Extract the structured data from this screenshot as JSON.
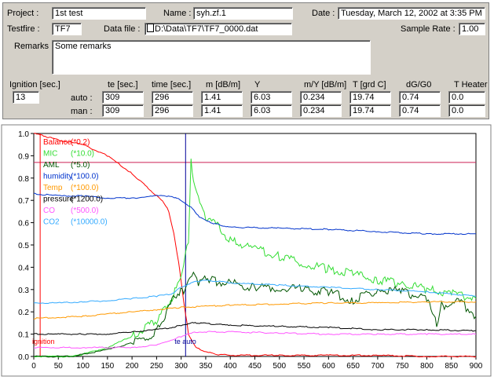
{
  "header": {
    "project_label": "Project :",
    "project_value": "1st test",
    "name_label": "Name :",
    "name_value": "syh.zf.1",
    "date_label": "Date :",
    "date_value": "Tuesday, March 12, 2002 at 3:35 PM",
    "testfire_label": "Testfire :",
    "testfire_value": "TF7",
    "datafile_label": "Data file :",
    "datafile_value": "D:\\Data\\TF7\\TF7_0000.dat",
    "samplerate_label": "Sample Rate :",
    "samplerate_value": "1.00",
    "remarks_label": "Remarks :",
    "remarks_value": "Some remarks"
  },
  "results": {
    "ignition_label": "Ignition [sec.]",
    "ignition_value": "13",
    "columns": [
      "te [sec.]",
      "time [sec.]",
      "m [dB/m]",
      "Y",
      "m/Y [dB/m]",
      "T [grd C]",
      "dG/G0",
      "T Heater"
    ],
    "rows": [
      {
        "label": "auto :",
        "values": [
          "309",
          "296",
          "1.41",
          "6.03",
          "0.234",
          "19.74",
          "0.74",
          "0.0"
        ]
      },
      {
        "label": "man :",
        "values": [
          "309",
          "296",
          "1.41",
          "6.03",
          "0.234",
          "19.74",
          "0.74",
          "0.0"
        ]
      }
    ]
  },
  "chart_data": {
    "type": "line",
    "xlim": [
      0,
      900
    ],
    "ylim": [
      0,
      1.0
    ],
    "x_ticks": [
      "0",
      "50",
      "100",
      "150",
      "200",
      "250",
      "300",
      "350",
      "400",
      "450",
      "500",
      "550",
      "600",
      "650",
      "700",
      "750",
      "800",
      "850",
      "900"
    ],
    "y_ticks": [
      "0.0",
      "0.1",
      "0.2",
      "0.3",
      "0.4",
      "0.5",
      "0.6",
      "0.7",
      "0.8",
      "0.9",
      "1.0"
    ],
    "grid": false,
    "legend_position": "top-left",
    "annotations": {
      "ignition": "ignition",
      "te_auto": "te auto"
    },
    "markers": {
      "ignition_x": 13,
      "te_x": 309,
      "horizontal_y": 0.87
    },
    "series": [
      {
        "name": "Balance",
        "scale": "(*0.2)",
        "color": "#ff0000",
        "x": [
          0,
          20,
          50,
          100,
          150,
          200,
          230,
          250,
          265,
          275,
          285,
          295,
          305,
          315,
          330,
          350,
          370,
          400,
          500,
          600,
          700,
          800,
          900
        ],
        "y": [
          1.0,
          0.99,
          0.97,
          0.95,
          0.9,
          0.82,
          0.76,
          0.72,
          0.69,
          0.65,
          0.55,
          0.42,
          0.25,
          0.1,
          0.04,
          0.02,
          0.01,
          0.005,
          0.005,
          0.005,
          0.005,
          0.0,
          0.0
        ]
      },
      {
        "name": "MIC",
        "scale": "(*10.0)",
        "color": "#33dd33",
        "x": [
          0,
          80,
          100,
          150,
          200,
          230,
          250,
          270,
          290,
          305,
          315,
          320,
          325,
          335,
          350,
          380,
          400,
          450,
          500,
          550,
          600,
          650,
          700,
          750,
          800,
          850,
          880,
          900
        ],
        "y": [
          0.0,
          0.0,
          0.01,
          0.04,
          0.09,
          0.13,
          0.16,
          0.22,
          0.3,
          0.4,
          0.52,
          0.89,
          0.78,
          0.7,
          0.63,
          0.57,
          0.52,
          0.48,
          0.45,
          0.42,
          0.39,
          0.37,
          0.34,
          0.33,
          0.3,
          0.28,
          0.27,
          0.26
        ]
      },
      {
        "name": "AML",
        "scale": "(*5.0)",
        "color": "#005500",
        "x": [
          0,
          80,
          100,
          150,
          200,
          230,
          250,
          270,
          290,
          305,
          315,
          325,
          335,
          345,
          360,
          400,
          450,
          500,
          550,
          600,
          650,
          700,
          750,
          800,
          820,
          830,
          850,
          870,
          880,
          890,
          900
        ],
        "y": [
          0.0,
          0.0,
          0.01,
          0.03,
          0.06,
          0.08,
          0.12,
          0.2,
          0.28,
          0.3,
          0.34,
          0.36,
          0.33,
          0.37,
          0.34,
          0.33,
          0.31,
          0.31,
          0.3,
          0.29,
          0.25,
          0.3,
          0.29,
          0.26,
          0.14,
          0.23,
          0.23,
          0.26,
          0.22,
          0.2,
          0.18
        ]
      },
      {
        "name": "humidity",
        "scale": "(*100.0)",
        "color": "#0033cc",
        "x": [
          0,
          50,
          100,
          150,
          200,
          250,
          280,
          300,
          320,
          340,
          360,
          380,
          400,
          500,
          600,
          700,
          800,
          900
        ],
        "y": [
          0.73,
          0.72,
          0.72,
          0.71,
          0.71,
          0.72,
          0.72,
          0.7,
          0.67,
          0.62,
          0.6,
          0.59,
          0.58,
          0.575,
          0.57,
          0.56,
          0.55,
          0.55
        ]
      },
      {
        "name": "Temp",
        "scale": "(*100.0)",
        "color": "#ff9900",
        "x": [
          0,
          50,
          100,
          150,
          200,
          250,
          300,
          350,
          400,
          500,
          600,
          700,
          800,
          900
        ],
        "y": [
          0.17,
          0.175,
          0.18,
          0.19,
          0.2,
          0.21,
          0.22,
          0.225,
          0.23,
          0.235,
          0.24,
          0.24,
          0.245,
          0.245
        ]
      },
      {
        "name": "pressure",
        "scale": "(*1200.0)",
        "color": "#000000",
        "x": [
          0,
          50,
          100,
          150,
          200,
          250,
          280,
          300,
          320,
          340,
          360,
          400,
          500,
          600,
          700,
          800,
          900
        ],
        "y": [
          0.1,
          0.1,
          0.1,
          0.1,
          0.11,
          0.12,
          0.13,
          0.14,
          0.15,
          0.15,
          0.145,
          0.14,
          0.135,
          0.13,
          0.12,
          0.12,
          0.115
        ]
      },
      {
        "name": "CO",
        "scale": "(*500.0)",
        "color": "#ff55ff",
        "x": [
          0,
          100,
          200,
          250,
          300,
          330,
          360,
          400,
          500,
          600,
          700,
          800,
          900
        ],
        "y": [
          0.04,
          0.04,
          0.04,
          0.05,
          0.09,
          0.11,
          0.11,
          0.11,
          0.105,
          0.1,
          0.1,
          0.1,
          0.1
        ]
      },
      {
        "name": "CO2",
        "scale": "(*10000.0)",
        "color": "#33aaff",
        "x": [
          0,
          50,
          100,
          150,
          200,
          250,
          280,
          300,
          320,
          340,
          360,
          400,
          500,
          600,
          700,
          800,
          900
        ],
        "y": [
          0.24,
          0.24,
          0.245,
          0.25,
          0.26,
          0.27,
          0.28,
          0.31,
          0.33,
          0.34,
          0.34,
          0.33,
          0.32,
          0.31,
          0.3,
          0.29,
          0.27
        ]
      }
    ]
  }
}
